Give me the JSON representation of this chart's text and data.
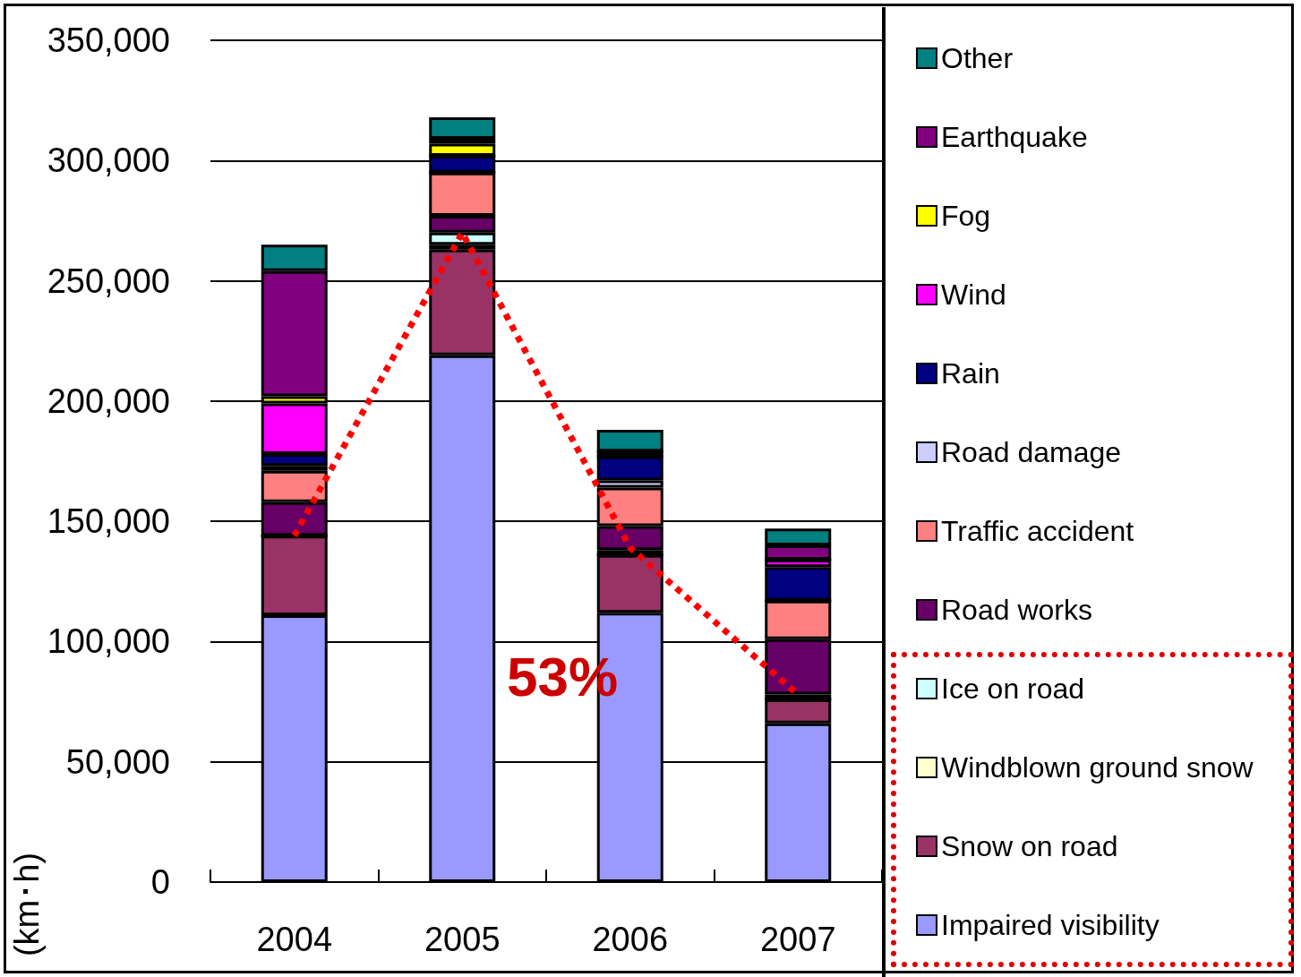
{
  "chart_data": {
    "type": "bar",
    "stacked": true,
    "ylabel": "(km･h)",
    "categories": [
      "2004",
      "2005",
      "2006",
      "2007"
    ],
    "series": [
      {
        "name": "Impaired visibility",
        "color": "#9999ff",
        "values": [
          111000,
          219000,
          112000,
          66000
        ]
      },
      {
        "name": "Snow on road",
        "color": "#993366",
        "values": [
          33000,
          44000,
          24000,
          10000
        ]
      },
      {
        "name": "Windblown ground snow",
        "color": "#ffffcc",
        "values": [
          0,
          2000,
          0,
          0
        ]
      },
      {
        "name": "Ice on road",
        "color": "#ccffff",
        "values": [
          0,
          5000,
          2000,
          2000
        ]
      },
      {
        "name": "Road works",
        "color": "#660066",
        "values": [
          14000,
          7000,
          10000,
          23000
        ]
      },
      {
        "name": "Traffic accident",
        "color": "#ff8080",
        "values": [
          13000,
          18000,
          16000,
          16000
        ]
      },
      {
        "name": "Road damage",
        "color": "#ccccff",
        "values": [
          2000,
          0,
          3000,
          0
        ]
      },
      {
        "name": "Rain",
        "color": "#000080",
        "values": [
          5000,
          7000,
          10000,
          14000
        ]
      },
      {
        "name": "Wind",
        "color": "#ff00ff",
        "values": [
          21000,
          0,
          0,
          3000
        ]
      },
      {
        "name": "Fog",
        "color": "#ffff00",
        "values": [
          3000,
          5000,
          2000,
          0
        ]
      },
      {
        "name": "Earthquake",
        "color": "#800080",
        "values": [
          52000,
          2000,
          0,
          6000
        ]
      },
      {
        "name": "Other",
        "color": "#008080",
        "values": [
          11000,
          9000,
          9000,
          7000
        ]
      },
      {
        "type": "line",
        "color": "#ff0000",
        "line_style": "dotted",
        "marker": "none",
        "values": [
          144000,
          270000,
          139000,
          78000
        ]
      }
    ],
    "ylim": [
      0,
      350000
    ],
    "yticks": [
      0,
      {
        "value": 50000,
        "label": "50,000"
      },
      {
        "value": 100000,
        "label": "100,000"
      },
      {
        "value": 150000,
        "label": "150,000"
      },
      {
        "value": 200000,
        "label": "200,000"
      },
      {
        "value": 250000,
        "label": "250,000"
      },
      {
        "value": 300000,
        "label": "300,000"
      },
      {
        "value": 350000,
        "label": "350,000"
      }
    ],
    "grid": "y",
    "legend": "right",
    "annotations": [
      "53%"
    ]
  }
}
